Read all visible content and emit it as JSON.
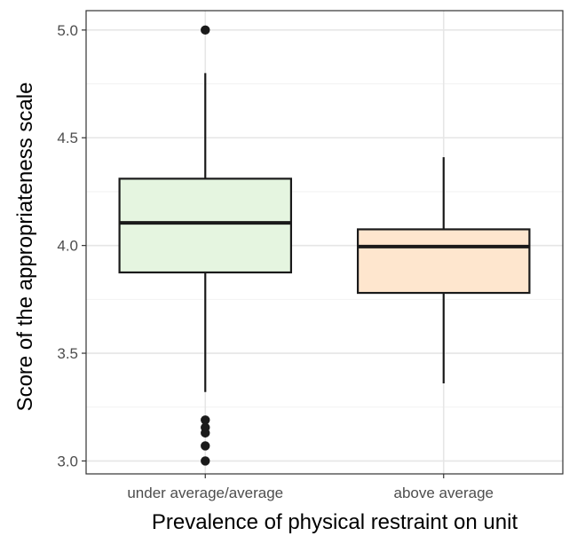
{
  "chart_data": {
    "type": "boxplot",
    "xlabel": "Prevalence of physical restraint on unit",
    "ylabel": "Score of the appropriateness scale",
    "ylim": [
      2.94,
      5.09
    ],
    "yticks": [
      3.0,
      3.5,
      4.0,
      4.5,
      5.0
    ],
    "ytick_labels": [
      "3.0",
      "3.5",
      "4.0",
      "4.5",
      "5.0"
    ],
    "grid": true,
    "legend": "none",
    "categories": [
      "under average/average",
      "above average"
    ],
    "boxes": [
      {
        "category": "under average/average",
        "whisker_low": 3.32,
        "q1": 3.875,
        "median": 4.105,
        "q3": 4.31,
        "whisker_high": 4.8,
        "outliers": [
          5.0,
          3.19,
          3.155,
          3.13,
          3.07,
          3.0
        ],
        "fill": "#e5f5e0"
      },
      {
        "category": "above average",
        "whisker_low": 3.36,
        "q1": 3.78,
        "median": 3.995,
        "q3": 4.075,
        "whisker_high": 4.41,
        "outliers": [],
        "fill": "#fee6ce"
      }
    ]
  }
}
